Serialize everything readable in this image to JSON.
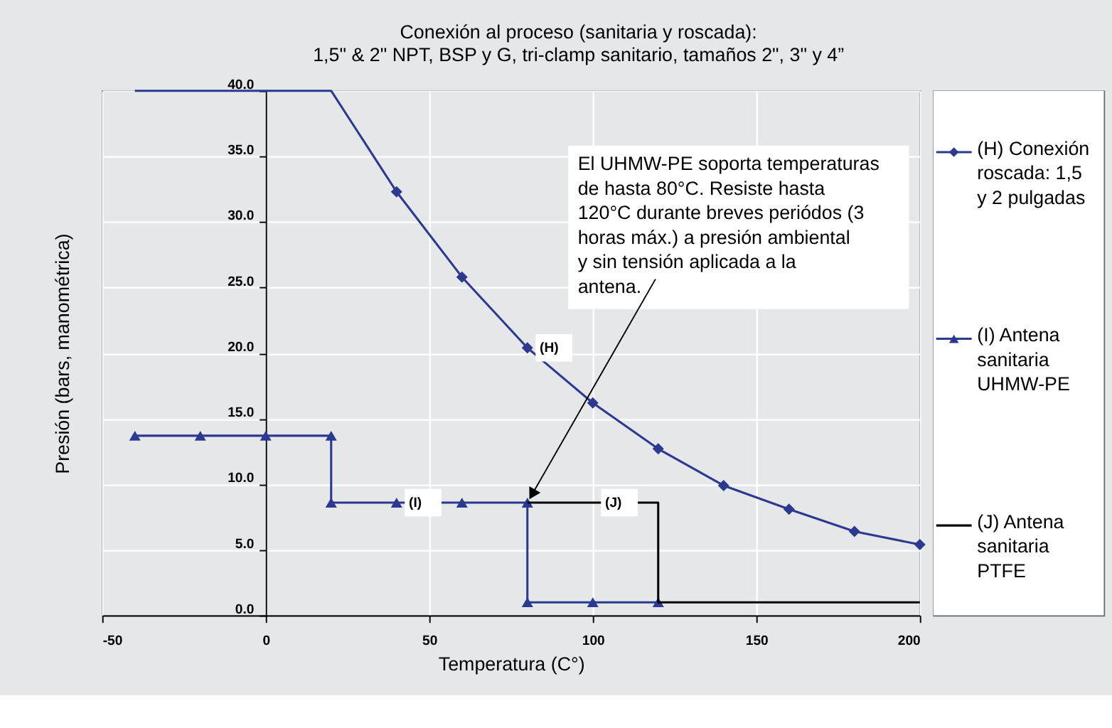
{
  "chart_data": {
    "type": "line",
    "title": "Conexión al proceso (sanitaria y roscada):",
    "subtitle": "1,5\" & 2\" NPT, BSP y G, tri-clamp sanitario, tamaños 2\", 3\" y 4”",
    "xlabel": "Temperatura (C°)",
    "ylabel": "Presión (bars, manométrica)",
    "xlim": [
      -50,
      200
    ],
    "xticks": [
      -50,
      0,
      50,
      100,
      150,
      200
    ],
    "ylim": [
      0,
      40
    ],
    "yticks": [
      {
        "value": 0,
        "label": "0.0"
      },
      {
        "value": 5,
        "label": "5.0"
      },
      {
        "value": 10,
        "label": "10.0"
      },
      {
        "value": 15,
        "label": "15.0"
      },
      {
        "value": 20,
        "label": "20.0"
      },
      {
        "value": 25,
        "label": "25.0"
      },
      {
        "value": 30,
        "label": "30.0"
      },
      {
        "value": 35,
        "label": "35.0"
      },
      {
        "value": 40,
        "label": "40.0"
      }
    ],
    "grid": true,
    "legend": "right",
    "line_style": "solid",
    "series": [
      {
        "color": "#2b3990",
        "marker": "none",
        "x": [
          -40,
          20,
          40
        ],
        "values": [
          40,
          40,
          32.3
        ]
      },
      {
        "name": "(H) Conexión roscada: 1,5 y 2 pulgadas",
        "color": "#2b3990",
        "marker": "diamond",
        "x": [
          40,
          60,
          80,
          100,
          120,
          140,
          160,
          180,
          200
        ],
        "values": [
          32.3,
          25.8,
          20.4,
          16.2,
          12.7,
          9.9,
          8.1,
          6.4,
          5.4
        ]
      },
      {
        "name": "(I) Antena sanitaria UHMW-PE",
        "color": "#2b3990",
        "marker": "triangle",
        "x": [
          -40,
          -20,
          0,
          20,
          20,
          40,
          60,
          80,
          80,
          100,
          120
        ],
        "values": [
          13.7,
          13.7,
          13.7,
          13.7,
          8.6,
          8.6,
          8.6,
          8.6,
          1.0,
          1.0,
          1.0
        ]
      },
      {
        "name": "(J) Antena sanitaria PTFE",
        "color": "#000000",
        "marker": "none",
        "x": [
          80,
          120,
          120,
          200
        ],
        "values": [
          8.6,
          8.6,
          1.0,
          1.0
        ]
      }
    ],
    "annotations": [
      {
        "text": "(H)",
        "x": 80,
        "y": 20.4
      },
      {
        "text": "(I)",
        "x": 40,
        "y": 8.6
      },
      {
        "text": "(J)",
        "x": 100,
        "y": 8.6
      },
      {
        "text": "El UHMW-PE soporta temperaturas de hasta 80°C. Resiste hasta 120°C durante breves periódos (3 horas máx.) a presión ambiental y sin tensión aplicada a la antena.",
        "x": 80,
        "y": 8.6
      }
    ]
  }
}
